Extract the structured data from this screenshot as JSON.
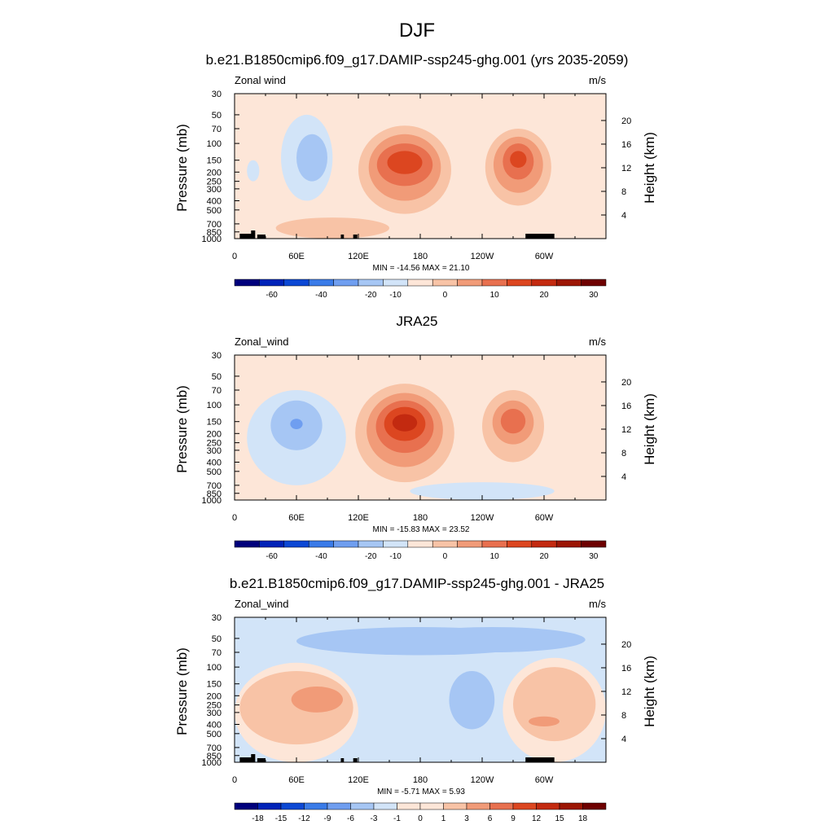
{
  "figure": {
    "title": "DJF"
  },
  "colors": {
    "wind_fill": [
      "#00007c",
      "#0023b8",
      "#0c48d4",
      "#3a7be8",
      "#6f9ef0",
      "#a6c6f4",
      "#d2e4f8",
      "#fde6d8",
      "#f8c3a6",
      "#f19b78",
      "#e8704f",
      "#dc4620",
      "#c32a10",
      "#9c1604",
      "#6e0000"
    ],
    "pos1": "#fde6d8",
    "pos2": "#f8c3a6",
    "pos3": "#f19b78",
    "pos4": "#e8704f",
    "pos5": "#dc4620",
    "pos6": "#c32a10",
    "neg1": "#d2e4f8",
    "neg2": "#a6c6f4",
    "neg3": "#6f9ef0",
    "topography": "#000000"
  },
  "chart_data": [
    {
      "type": "contour",
      "title": "b.e21.B1850cmip6.f09_g17.DAMIP-ssp245-ghg.001 (yrs 2035-2059)",
      "left_label": "Zonal wind",
      "right_label": "m/s",
      "ylabel": "Pressure (mb)",
      "ylabel_right": "Height (km)",
      "xticks": [
        "0",
        "60E",
        "120E",
        "180",
        "120W",
        "60W"
      ],
      "xlim": [
        0,
        360
      ],
      "yticks": [
        "30",
        "50",
        "70",
        "100",
        "150",
        "200",
        "250",
        "300",
        "400",
        "500",
        "700",
        "850",
        "1000"
      ],
      "ylim": [
        1000,
        30
      ],
      "yscale": "log",
      "height_ticks": [
        "20",
        "16",
        "12",
        "8",
        "4"
      ],
      "stats": "MIN = -14.56  MAX =  21.10",
      "colorbar_levels": [
        "-70",
        "-60",
        "-50",
        "-40",
        "-30",
        "-20",
        "-15",
        "-10",
        "-5",
        "0",
        "5",
        "10",
        "15",
        "20",
        "25",
        "30",
        "35"
      ],
      "colorbar_labels": [
        "-60",
        "-40",
        "-20",
        "-10",
        "0",
        "10",
        "20",
        "30"
      ],
      "min": -14.56,
      "max": 21.1
    },
    {
      "type": "contour",
      "title": "JRA25",
      "left_label": "Zonal_wind",
      "right_label": "m/s",
      "ylabel": "Pressure (mb)",
      "ylabel_right": "Height (km)",
      "xticks": [
        "0",
        "60E",
        "120E",
        "180",
        "120W",
        "60W"
      ],
      "xlim": [
        0,
        360
      ],
      "yticks": [
        "30",
        "50",
        "70",
        "100",
        "150",
        "200",
        "250",
        "300",
        "400",
        "500",
        "700",
        "850",
        "1000"
      ],
      "ylim": [
        1000,
        30
      ],
      "yscale": "log",
      "height_ticks": [
        "20",
        "16",
        "12",
        "8",
        "4"
      ],
      "stats": "MIN = -15.83  MAX =  23.52",
      "colorbar_labels": [
        "-60",
        "-40",
        "-20",
        "-10",
        "0",
        "10",
        "20",
        "30"
      ],
      "min": -15.83,
      "max": 23.52
    },
    {
      "type": "contour",
      "title": "b.e21.B1850cmip6.f09_g17.DAMIP-ssp245-ghg.001 - JRA25",
      "left_label": "Zonal_wind",
      "right_label": "m/s",
      "ylabel": "Pressure (mb)",
      "ylabel_right": "Height (km)",
      "xticks": [
        "0",
        "60E",
        "120E",
        "180",
        "120W",
        "60W"
      ],
      "xlim": [
        0,
        360
      ],
      "yticks": [
        "30",
        "50",
        "70",
        "100",
        "150",
        "200",
        "250",
        "300",
        "400",
        "500",
        "700",
        "850",
        "1000"
      ],
      "ylim": [
        1000,
        30
      ],
      "yscale": "log",
      "height_ticks": [
        "20",
        "16",
        "12",
        "8",
        "4"
      ],
      "stats": "MIN = -5.71  MAX =  5.93",
      "colorbar_labels": [
        "-18",
        "-15",
        "-12",
        "-9",
        "-6",
        "-3",
        "-1",
        "0",
        "1",
        "3",
        "6",
        "9",
        "12",
        "15",
        "18"
      ],
      "colorbar_fill": [
        "#00007c",
        "#0023b8",
        "#0c48d4",
        "#3a7be8",
        "#6f9ef0",
        "#a6c6f4",
        "#d2e4f8",
        "#fde6d8",
        "#fde6d8",
        "#f8c3a6",
        "#f19b78",
        "#e8704f",
        "#dc4620",
        "#c32a10",
        "#9c1604",
        "#6e0000"
      ],
      "min": -5.71,
      "max": 5.93
    }
  ]
}
